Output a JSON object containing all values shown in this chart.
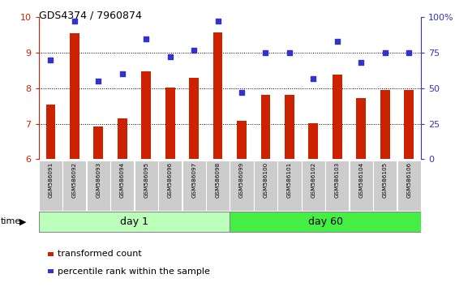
{
  "title": "GDS4374 / 7960874",
  "samples": [
    "GSM586091",
    "GSM586092",
    "GSM586093",
    "GSM586094",
    "GSM586095",
    "GSM586096",
    "GSM586097",
    "GSM586098",
    "GSM586099",
    "GSM586100",
    "GSM586101",
    "GSM586102",
    "GSM586103",
    "GSM586104",
    "GSM586105",
    "GSM586106"
  ],
  "bar_values": [
    7.55,
    9.55,
    6.92,
    7.15,
    8.48,
    8.02,
    8.3,
    9.58,
    7.08,
    7.82,
    7.82,
    7.02,
    8.38,
    7.73,
    7.95,
    7.95
  ],
  "dot_values_pct": [
    70,
    97,
    55,
    60,
    85,
    72,
    77,
    97,
    47,
    75,
    75,
    57,
    83,
    68,
    75,
    75
  ],
  "ylim_left": [
    6,
    10
  ],
  "ylim_right": [
    0,
    100
  ],
  "yticks_left": [
    6,
    7,
    8,
    9,
    10
  ],
  "yticks_right": [
    0,
    25,
    50,
    75,
    100
  ],
  "ytick_labels_right": [
    "0",
    "25",
    "50",
    "75",
    "100%"
  ],
  "bar_color": "#CC2200",
  "dot_color": "#3333CC",
  "day1_color": "#BBFFBB",
  "day60_color": "#44EE44",
  "group_bg_color": "#CCCCCC",
  "time_label": "time",
  "legend_bar_label": "transformed count",
  "legend_dot_label": "percentile rank within the sample",
  "grid_yticks": [
    7,
    8,
    9
  ],
  "tick_label_color_left": "#CC2200",
  "tick_label_color_right": "#3333CC",
  "bar_width": 0.4
}
